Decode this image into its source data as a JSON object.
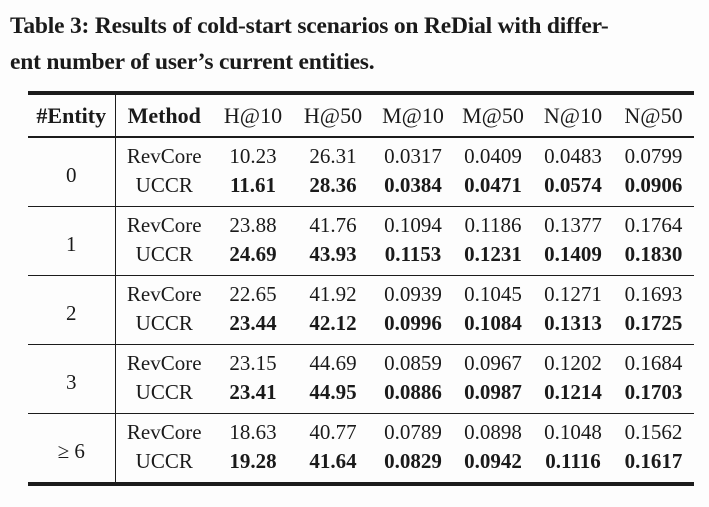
{
  "caption": {
    "line1": "Table 3: Results of cold-start scenarios on ReDial with differ-",
    "line2": "ent number of user’s current entities."
  },
  "colors": {
    "text": "#1a1a1a",
    "rule": "#1c1c1c",
    "background": "#fdfdfd"
  },
  "table": {
    "headers": [
      "#Entity",
      "Method",
      "H@10",
      "H@50",
      "M@10",
      "M@50",
      "N@10",
      "N@50"
    ],
    "groups": [
      {
        "entity": "0",
        "rows": [
          {
            "method": "RevCore",
            "values": [
              "10.23",
              "26.31",
              "0.0317",
              "0.0409",
              "0.0483",
              "0.0799"
            ]
          },
          {
            "method": "UCCR",
            "values": [
              "11.61",
              "28.36",
              "0.0384",
              "0.0471",
              "0.0574",
              "0.0906"
            ]
          }
        ]
      },
      {
        "entity": "1",
        "rows": [
          {
            "method": "RevCore",
            "values": [
              "23.88",
              "41.76",
              "0.1094",
              "0.1186",
              "0.1377",
              "0.1764"
            ]
          },
          {
            "method": "UCCR",
            "values": [
              "24.69",
              "43.93",
              "0.1153",
              "0.1231",
              "0.1409",
              "0.1830"
            ]
          }
        ]
      },
      {
        "entity": "2",
        "rows": [
          {
            "method": "RevCore",
            "values": [
              "22.65",
              "41.92",
              "0.0939",
              "0.1045",
              "0.1271",
              "0.1693"
            ]
          },
          {
            "method": "UCCR",
            "values": [
              "23.44",
              "42.12",
              "0.0996",
              "0.1084",
              "0.1313",
              "0.1725"
            ]
          }
        ]
      },
      {
        "entity": "3",
        "rows": [
          {
            "method": "RevCore",
            "values": [
              "23.15",
              "44.69",
              "0.0859",
              "0.0967",
              "0.1202",
              "0.1684"
            ]
          },
          {
            "method": "UCCR",
            "values": [
              "23.41",
              "44.95",
              "0.0886",
              "0.0987",
              "0.1214",
              "0.1703"
            ]
          }
        ]
      },
      {
        "entity": "≥ 6",
        "rows": [
          {
            "method": "RevCore",
            "values": [
              "18.63",
              "40.77",
              "0.0789",
              "0.0898",
              "0.1048",
              "0.1562"
            ]
          },
          {
            "method": "UCCR",
            "values": [
              "19.28",
              "41.64",
              "0.0829",
              "0.0942",
              "0.1116",
              "0.1617"
            ]
          }
        ]
      }
    ]
  }
}
